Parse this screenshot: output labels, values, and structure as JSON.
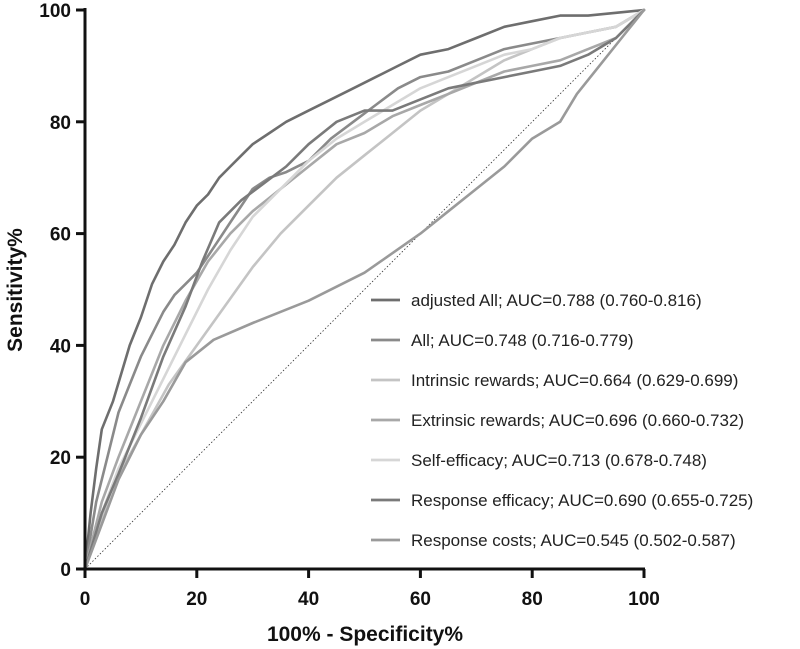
{
  "chart_data": {
    "type": "line",
    "title": "",
    "xlabel": "100% - Specificity%",
    "ylabel": "Sensitivity%",
    "xlim": [
      0,
      100
    ],
    "ylim": [
      0,
      100
    ],
    "xticks": [
      "0",
      "20",
      "40",
      "60",
      "80",
      "100"
    ],
    "yticks": [
      "0",
      "20",
      "40",
      "60",
      "80",
      "100"
    ],
    "grid": false,
    "legend_position": "bottom-right",
    "reference_line": {
      "from": [
        0,
        0
      ],
      "to": [
        100,
        100
      ],
      "style": "dotted"
    },
    "series": [
      {
        "name": "adjusted All; AUC=0.788 (0.760-0.816)",
        "color": "#6e6e6e",
        "x": [
          0,
          1,
          2,
          3,
          5,
          8,
          10,
          12,
          14,
          16,
          18,
          20,
          22,
          24,
          26,
          28,
          30,
          33,
          36,
          40,
          44,
          48,
          52,
          56,
          60,
          65,
          70,
          75,
          80,
          85,
          90,
          95,
          100
        ],
        "y": [
          0,
          10,
          18,
          25,
          30,
          40,
          45,
          51,
          55,
          58,
          62,
          65,
          67,
          70,
          72,
          74,
          76,
          78,
          80,
          82,
          84,
          86,
          88,
          90,
          92,
          93,
          95,
          97,
          98,
          99,
          99,
          99.5,
          100
        ]
      },
      {
        "name": "All; AUC=0.748 (0.716-0.779)",
        "color": "#8a8a8a",
        "x": [
          0,
          2,
          4,
          6,
          8,
          10,
          12,
          14,
          16,
          18,
          20,
          22,
          24,
          26,
          28,
          30,
          33,
          36,
          40,
          44,
          48,
          52,
          56,
          60,
          65,
          70,
          75,
          80,
          85,
          90,
          95,
          100
        ],
        "y": [
          0,
          12,
          20,
          28,
          33,
          38,
          42,
          46,
          49,
          51,
          53,
          56,
          59,
          62,
          65,
          68,
          70,
          71,
          73,
          77,
          80,
          83,
          86,
          88,
          89,
          91,
          93,
          94,
          95,
          96,
          97,
          100
        ]
      },
      {
        "name": "Intrinsic rewards; AUC=0.664 (0.629-0.699)",
        "color": "#c4c4c4",
        "x": [
          0,
          5,
          10,
          15,
          20,
          25,
          30,
          35,
          40,
          45,
          50,
          55,
          60,
          65,
          70,
          75,
          80,
          85,
          90,
          95,
          100
        ],
        "y": [
          0,
          15,
          24,
          33,
          40,
          47,
          54,
          60,
          65,
          70,
          74,
          78,
          82,
          85,
          88,
          91,
          93,
          95,
          96,
          97,
          100
        ]
      },
      {
        "name": "Extrinsic rewards; AUC=0.696 (0.660-0.732)",
        "color": "#a8a8a8",
        "x": [
          0,
          3,
          6,
          10,
          14,
          18,
          22,
          26,
          30,
          35,
          40,
          45,
          50,
          55,
          60,
          65,
          70,
          75,
          80,
          85,
          90,
          95,
          100
        ],
        "y": [
          0,
          12,
          20,
          30,
          40,
          48,
          55,
          60,
          64,
          68,
          72,
          76,
          78,
          81,
          83,
          85,
          87,
          89,
          90,
          91,
          93,
          95,
          100
        ]
      },
      {
        "name": "Self-efficacy; AUC=0.713 (0.678-0.748)",
        "color": "#d6d6d6",
        "x": [
          0,
          3,
          6,
          10,
          14,
          18,
          22,
          26,
          30,
          35,
          40,
          45,
          50,
          55,
          60,
          65,
          70,
          75,
          80,
          85,
          90,
          95,
          100
        ],
        "y": [
          0,
          10,
          18,
          26,
          34,
          42,
          50,
          57,
          63,
          68,
          73,
          77,
          80,
          83,
          86,
          88,
          90,
          92,
          93,
          95,
          96,
          97,
          100
        ]
      },
      {
        "name": "Response efficacy; AUC=0.690 (0.655-0.725)",
        "color": "#7a7a7a",
        "x": [
          0,
          3,
          6,
          10,
          14,
          18,
          21,
          24,
          28,
          32,
          36,
          40,
          45,
          50,
          55,
          60,
          65,
          70,
          75,
          80,
          85,
          90,
          95,
          100
        ],
        "y": [
          0,
          10,
          17,
          27,
          38,
          47,
          55,
          62,
          66,
          69,
          72,
          76,
          80,
          82,
          82,
          84,
          86,
          87,
          88,
          89,
          90,
          92,
          95,
          100
        ]
      },
      {
        "name": "Response costs; AUC=0.545 (0.502-0.587)",
        "color": "#9a9a9a",
        "x": [
          0,
          3,
          6,
          10,
          14,
          18,
          23,
          30,
          40,
          50,
          60,
          65,
          70,
          75,
          80,
          85,
          88,
          92,
          96,
          100
        ],
        "y": [
          0,
          8,
          16,
          24,
          30,
          37,
          41,
          44,
          48,
          53,
          60,
          64,
          68,
          72,
          77,
          80,
          85,
          90,
          95,
          100
        ]
      }
    ]
  }
}
